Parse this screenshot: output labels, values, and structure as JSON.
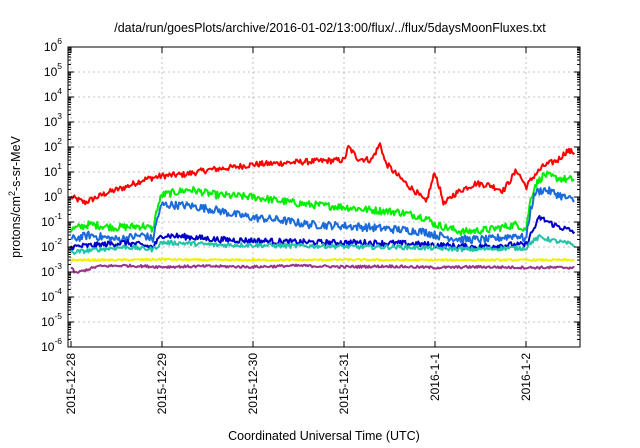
{
  "chart_data": {
    "type": "line",
    "title": "/data/run/goesPlots/archive/2016-01-02/13:00/flux/../flux/5daysMoonFluxes.txt",
    "xlabel": "Coordinated Universal Time (UTC)",
    "ylabel": "protons/cm²-s-sr-MeV",
    "yscale": "log",
    "ylim": [
      1e-06,
      1000000.0
    ],
    "xlim": [
      "2015-12-28 00:00",
      "2016-01-02 13:00"
    ],
    "x_ticks": [
      "2015-12-28",
      "2015-12-29",
      "2015-12-30",
      "2015-12-31",
      "2016-1-1",
      "2016-1-2"
    ],
    "y_ticks": [
      {
        "base": "10",
        "exp": "-6"
      },
      {
        "base": "10",
        "exp": "-5"
      },
      {
        "base": "10",
        "exp": "-4"
      },
      {
        "base": "10",
        "exp": "-3"
      },
      {
        "base": "10",
        "exp": "-2"
      },
      {
        "base": "10",
        "exp": "-1"
      },
      {
        "base": "10",
        "exp": "0"
      },
      {
        "base": "10",
        "exp": "1"
      },
      {
        "base": "10",
        "exp": "2"
      },
      {
        "base": "10",
        "exp": "3"
      },
      {
        "base": "10",
        "exp": "4"
      },
      {
        "base": "10",
        "exp": "5"
      },
      {
        "base": "10",
        "exp": "6"
      }
    ],
    "grid": true,
    "legend": "none",
    "series": [
      {
        "color": "#ff0000",
        "x": [
          0,
          0.15,
          0.4,
          0.6,
          0.8,
          1.0,
          1.25,
          1.5,
          1.75,
          2.0,
          2.25,
          2.5,
          2.8,
          3.0,
          3.05,
          3.15,
          3.3,
          3.4,
          3.45,
          3.55,
          3.7,
          3.8,
          3.9,
          4.0,
          4.1,
          4.2,
          4.3,
          4.45,
          4.6,
          4.75,
          4.9,
          5.0,
          5.1,
          5.2,
          5.35,
          5.45,
          5.54
        ],
        "y": [
          1.0,
          0.6,
          1.5,
          2.5,
          5,
          7,
          8,
          12,
          15,
          20,
          22,
          25,
          28,
          30,
          100,
          35,
          30,
          140,
          25,
          10,
          3,
          1.5,
          0.6,
          10,
          0.5,
          1.2,
          2.0,
          3.5,
          3.0,
          1.8,
          12,
          2.5,
          8,
          18,
          30,
          70,
          60
        ]
      },
      {
        "color": "#00ee00",
        "x": [
          0,
          0.2,
          0.5,
          0.8,
          0.9,
          0.95,
          1.0,
          1.3,
          1.6,
          1.8,
          2.0,
          2.3,
          2.6,
          3.0,
          3.3,
          3.6,
          3.9,
          4.0,
          4.3,
          4.6,
          4.9,
          5.0,
          5.05,
          5.1,
          5.2,
          5.3,
          5.45,
          5.54
        ],
        "y": [
          0.05,
          0.08,
          0.06,
          0.07,
          0.05,
          0.4,
          1.2,
          2.0,
          1.2,
          1.1,
          1.0,
          0.7,
          0.5,
          0.4,
          0.3,
          0.25,
          0.15,
          0.08,
          0.04,
          0.05,
          0.08,
          0.05,
          0.8,
          3,
          8,
          6,
          5,
          5
        ]
      },
      {
        "color": "#1a6bdc",
        "x": [
          0,
          0.2,
          0.5,
          0.8,
          0.9,
          0.95,
          1.0,
          1.3,
          1.6,
          1.8,
          2.0,
          2.3,
          2.6,
          3.0,
          3.3,
          3.6,
          3.9,
          4.0,
          4.3,
          4.6,
          4.9,
          5.0,
          5.05,
          5.1,
          5.2,
          5.3,
          5.45,
          5.54
        ],
        "y": [
          0.02,
          0.03,
          0.02,
          0.03,
          0.02,
          0.15,
          0.5,
          0.45,
          0.3,
          0.2,
          0.15,
          0.12,
          0.08,
          0.07,
          0.06,
          0.05,
          0.04,
          0.03,
          0.02,
          0.02,
          0.03,
          0.02,
          0.3,
          1.5,
          2.0,
          1.5,
          0.9,
          0.7
        ]
      },
      {
        "color": "#0000cc",
        "x": [
          0,
          0.3,
          0.6,
          0.9,
          1.0,
          1.3,
          1.6,
          2.0,
          2.4,
          2.8,
          3.2,
          3.6,
          4.0,
          4.4,
          4.8,
          5.0,
          5.05,
          5.15,
          5.3,
          5.45,
          5.54
        ],
        "y": [
          0.01,
          0.012,
          0.015,
          0.01,
          0.03,
          0.025,
          0.02,
          0.018,
          0.016,
          0.015,
          0.015,
          0.014,
          0.012,
          0.01,
          0.012,
          0.012,
          0.03,
          0.15,
          0.08,
          0.05,
          0.04
        ]
      },
      {
        "color": "#22c4a8",
        "x": [
          0,
          0.3,
          0.6,
          0.9,
          1.0,
          1.3,
          1.6,
          2.0,
          2.4,
          2.8,
          3.2,
          3.6,
          4.0,
          4.4,
          4.8,
          5.0,
          5.05,
          5.15,
          5.3,
          5.45,
          5.54
        ],
        "y": [
          0.006,
          0.008,
          0.01,
          0.008,
          0.015,
          0.014,
          0.012,
          0.012,
          0.011,
          0.011,
          0.01,
          0.01,
          0.009,
          0.008,
          0.009,
          0.009,
          0.015,
          0.025,
          0.018,
          0.014,
          0.012
        ]
      },
      {
        "color": "#f0f000",
        "x": [
          0,
          0.5,
          1.0,
          1.5,
          2.0,
          2.5,
          3.0,
          3.5,
          4.0,
          4.5,
          5.0,
          5.54
        ],
        "y": [
          0.003,
          0.003,
          0.0032,
          0.003,
          0.003,
          0.003,
          0.0031,
          0.003,
          0.003,
          0.003,
          0.003,
          0.003
        ]
      },
      {
        "color": "#993388",
        "x": [
          0,
          0.05,
          0.3,
          0.6,
          1.0,
          1.5,
          2.0,
          2.5,
          3.0,
          3.5,
          4.0,
          4.5,
          5.0,
          5.54
        ],
        "y": [
          0.0015,
          0.0009,
          0.0017,
          0.0018,
          0.0016,
          0.0017,
          0.0016,
          0.0018,
          0.0016,
          0.0017,
          0.0015,
          0.0016,
          0.0015,
          0.0015
        ]
      }
    ]
  }
}
